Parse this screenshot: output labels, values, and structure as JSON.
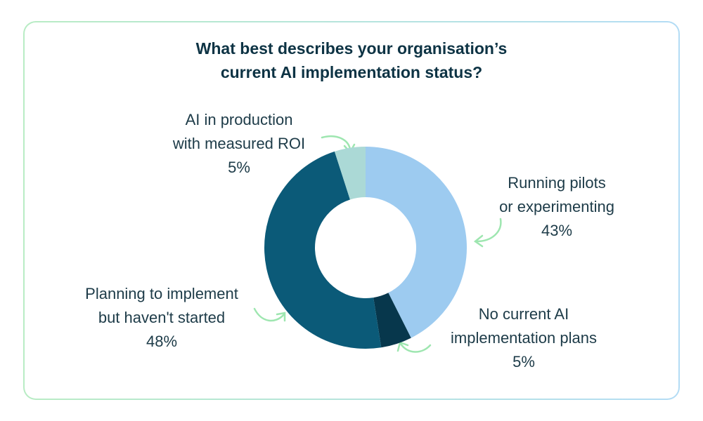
{
  "chart_data": {
    "type": "donut",
    "title": "What best describes your organisation’s current AI implementation status?",
    "categories": [
      "Running pilots or experimenting",
      "No current AI implementation plans",
      "Planning to implement but haven't started",
      "AI in production with measured ROI"
    ],
    "values": [
      43,
      5,
      48,
      5
    ],
    "value_labels": [
      "43%",
      "5%",
      "48%",
      "5%"
    ],
    "colors": [
      "#9dcbf0",
      "#07374c",
      "#0b5a78",
      "#abd9d6"
    ]
  }
}
